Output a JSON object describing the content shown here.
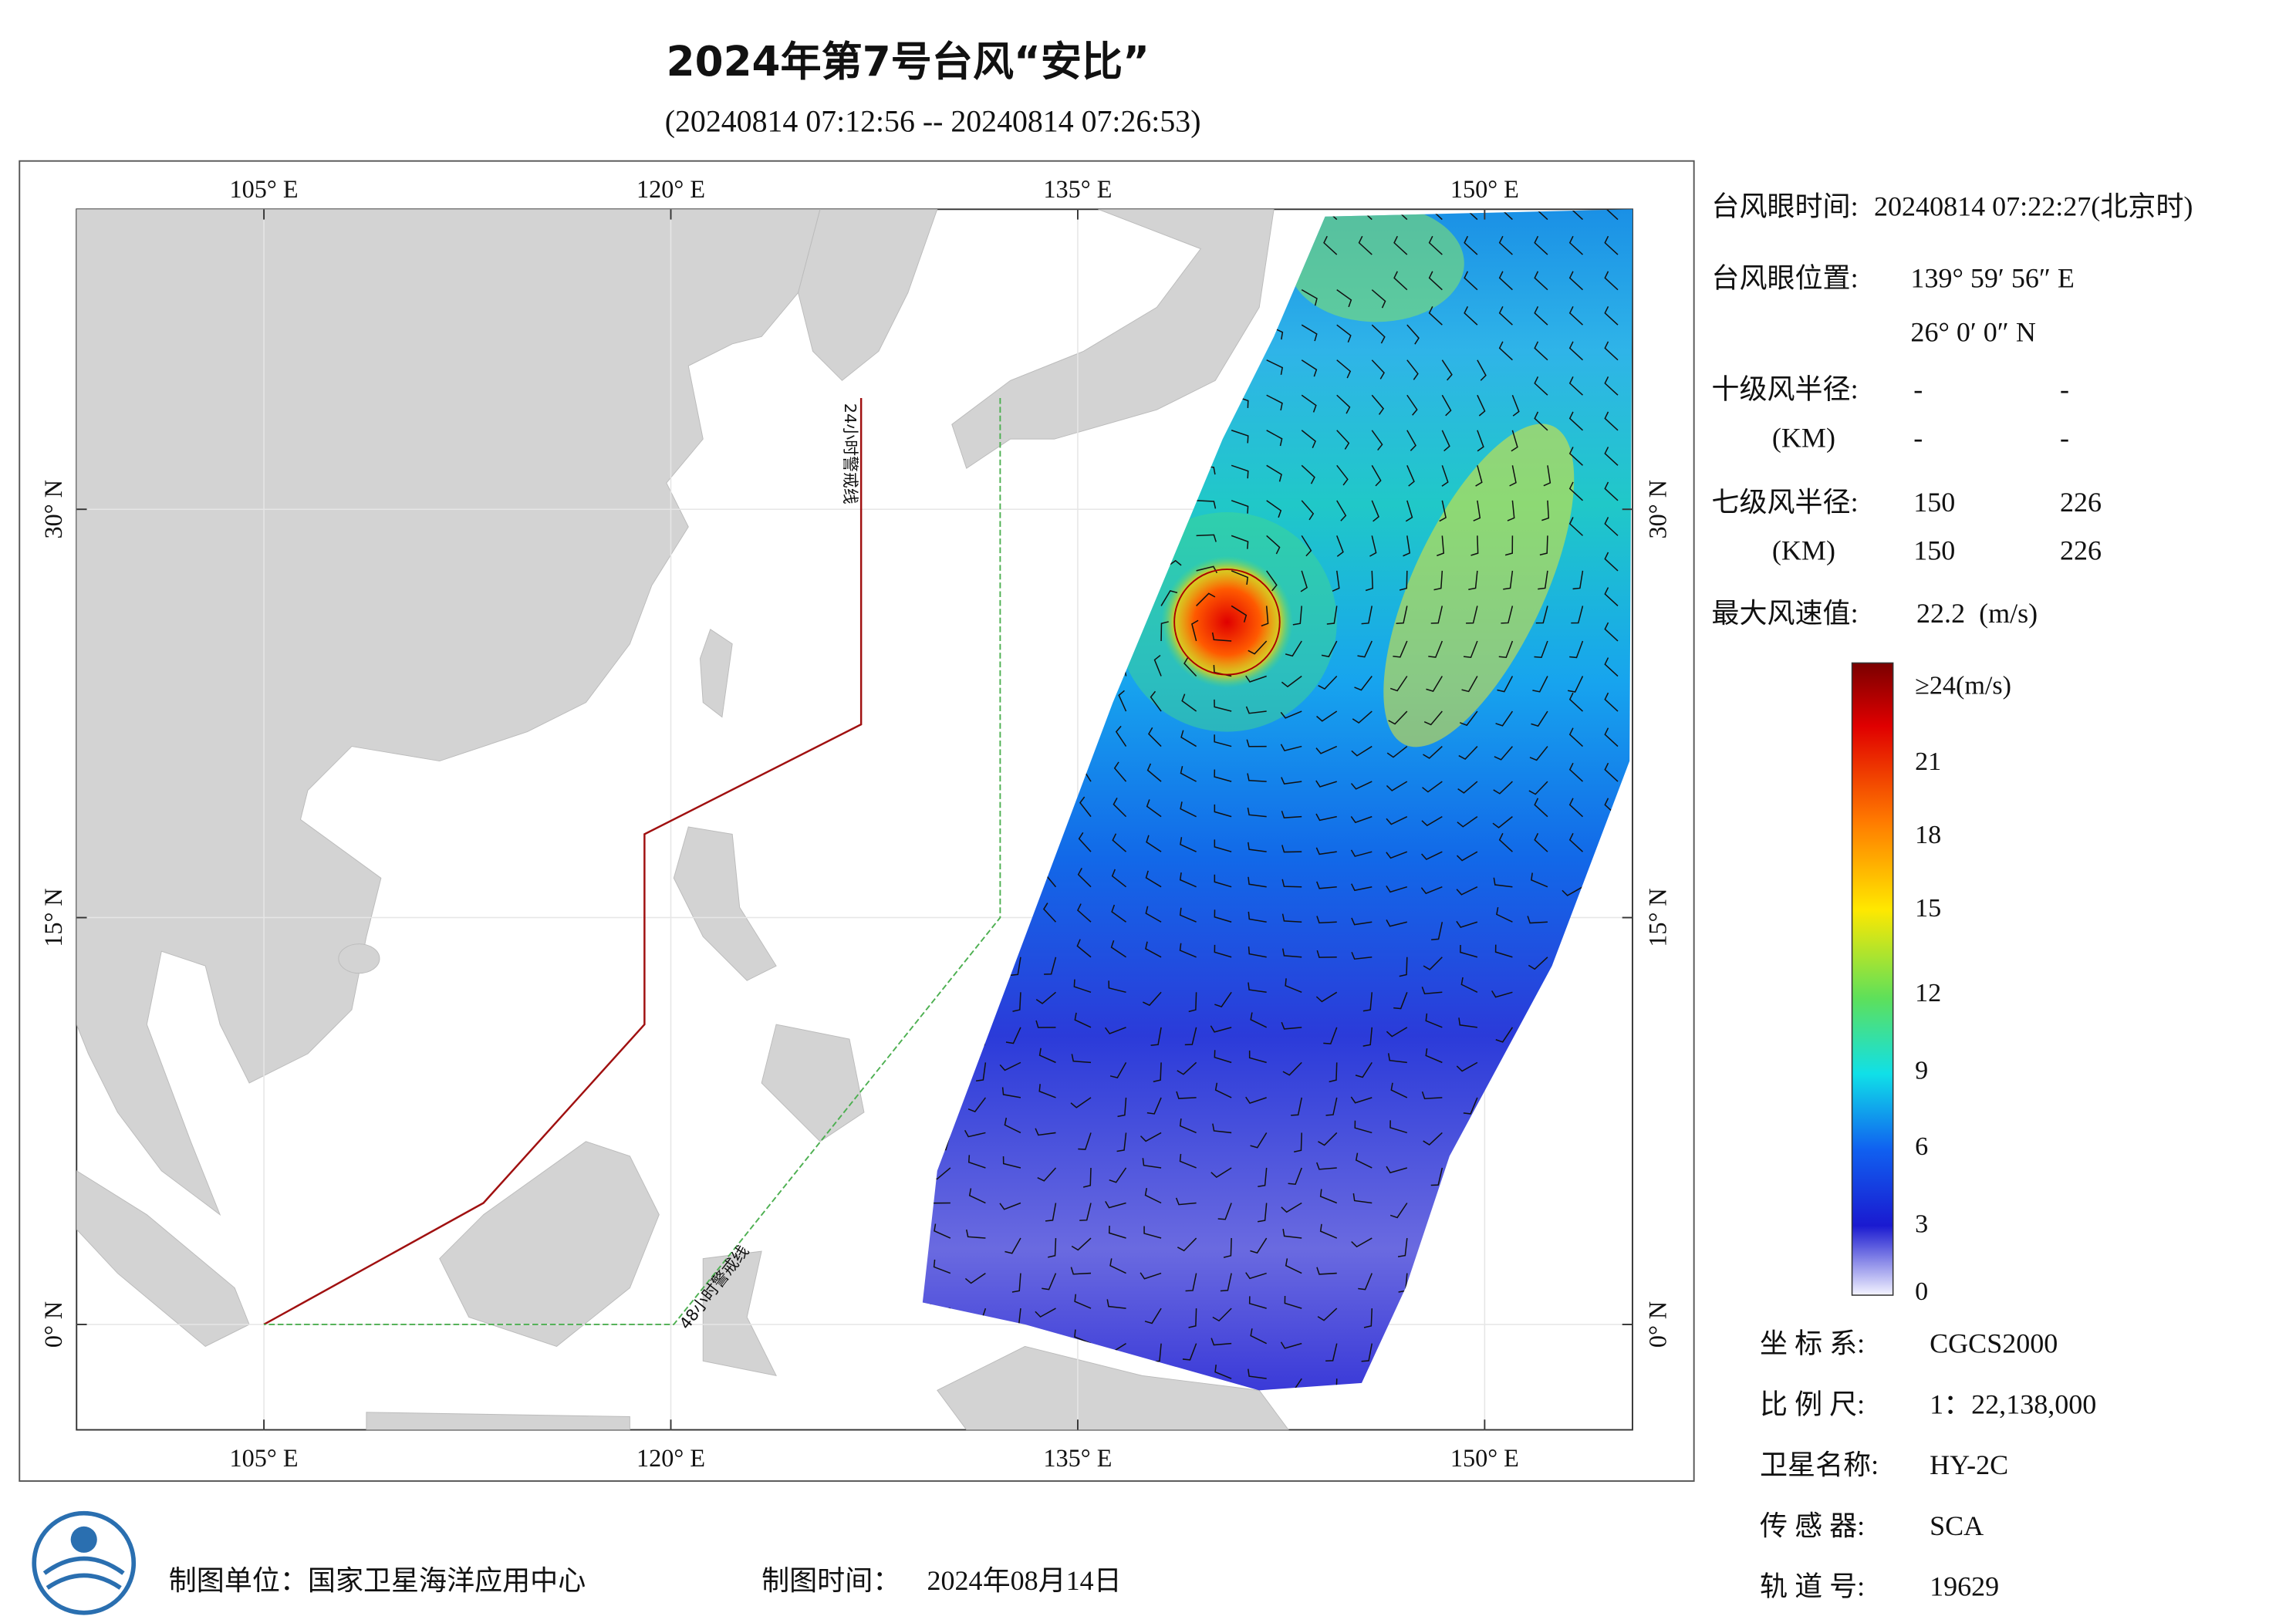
{
  "header": {
    "title": "2024年第7号台风“安比”",
    "subtitle": "(20240814 07:12:56 -- 20240814 07:26:53)"
  },
  "map": {
    "lon_labels": [
      "105° E",
      "120° E",
      "135° E",
      "150° E"
    ],
    "lat_labels": [
      "30° N",
      "15° N",
      "0° N"
    ],
    "warning_24h": "24小时警戒线",
    "warning_48h": "48小时警戒线"
  },
  "info": {
    "eye_time_label": "台风眼时间:",
    "eye_time": "20240814 07:22:27(北京时)",
    "eye_pos_label": "台风眼位置:",
    "eye_lon": "139° 59′ 56″ E",
    "eye_lat": "26° 0′ 0″ N",
    "radius10": [
      {
        "label": "十级风半径:",
        "v1": "-",
        "v2": "-"
      },
      {
        "label": "(KM)",
        "v1": "-",
        "v2": "-"
      }
    ],
    "radius7": [
      {
        "label": "七级风半径:",
        "v1": "150",
        "v2": "226"
      },
      {
        "label": "(KM)",
        "v1": "150",
        "v2": "226"
      }
    ],
    "max_wind_label": "最大风速值:",
    "max_wind": "22.2  (m/s)"
  },
  "colorbar": {
    "labels": [
      "≥24(m/s)",
      "21",
      "18",
      "15",
      "12",
      "9",
      "6",
      "3",
      "0"
    ]
  },
  "metadata": [
    {
      "label": "坐 标 系:",
      "value": "CGCS2000"
    },
    {
      "label": "比 例 尺:",
      "value": "1：22,138,000"
    },
    {
      "label": "卫星名称:",
      "value": "HY-2C"
    },
    {
      "label": "传 感 器:",
      "value": "SCA"
    },
    {
      "label": "轨 道 号:",
      "value": "19629"
    }
  ],
  "footer": {
    "unit": "制图单位：国家卫星海洋应用中心",
    "time_label": "制图时间：",
    "time": "2024年08月14日"
  }
}
